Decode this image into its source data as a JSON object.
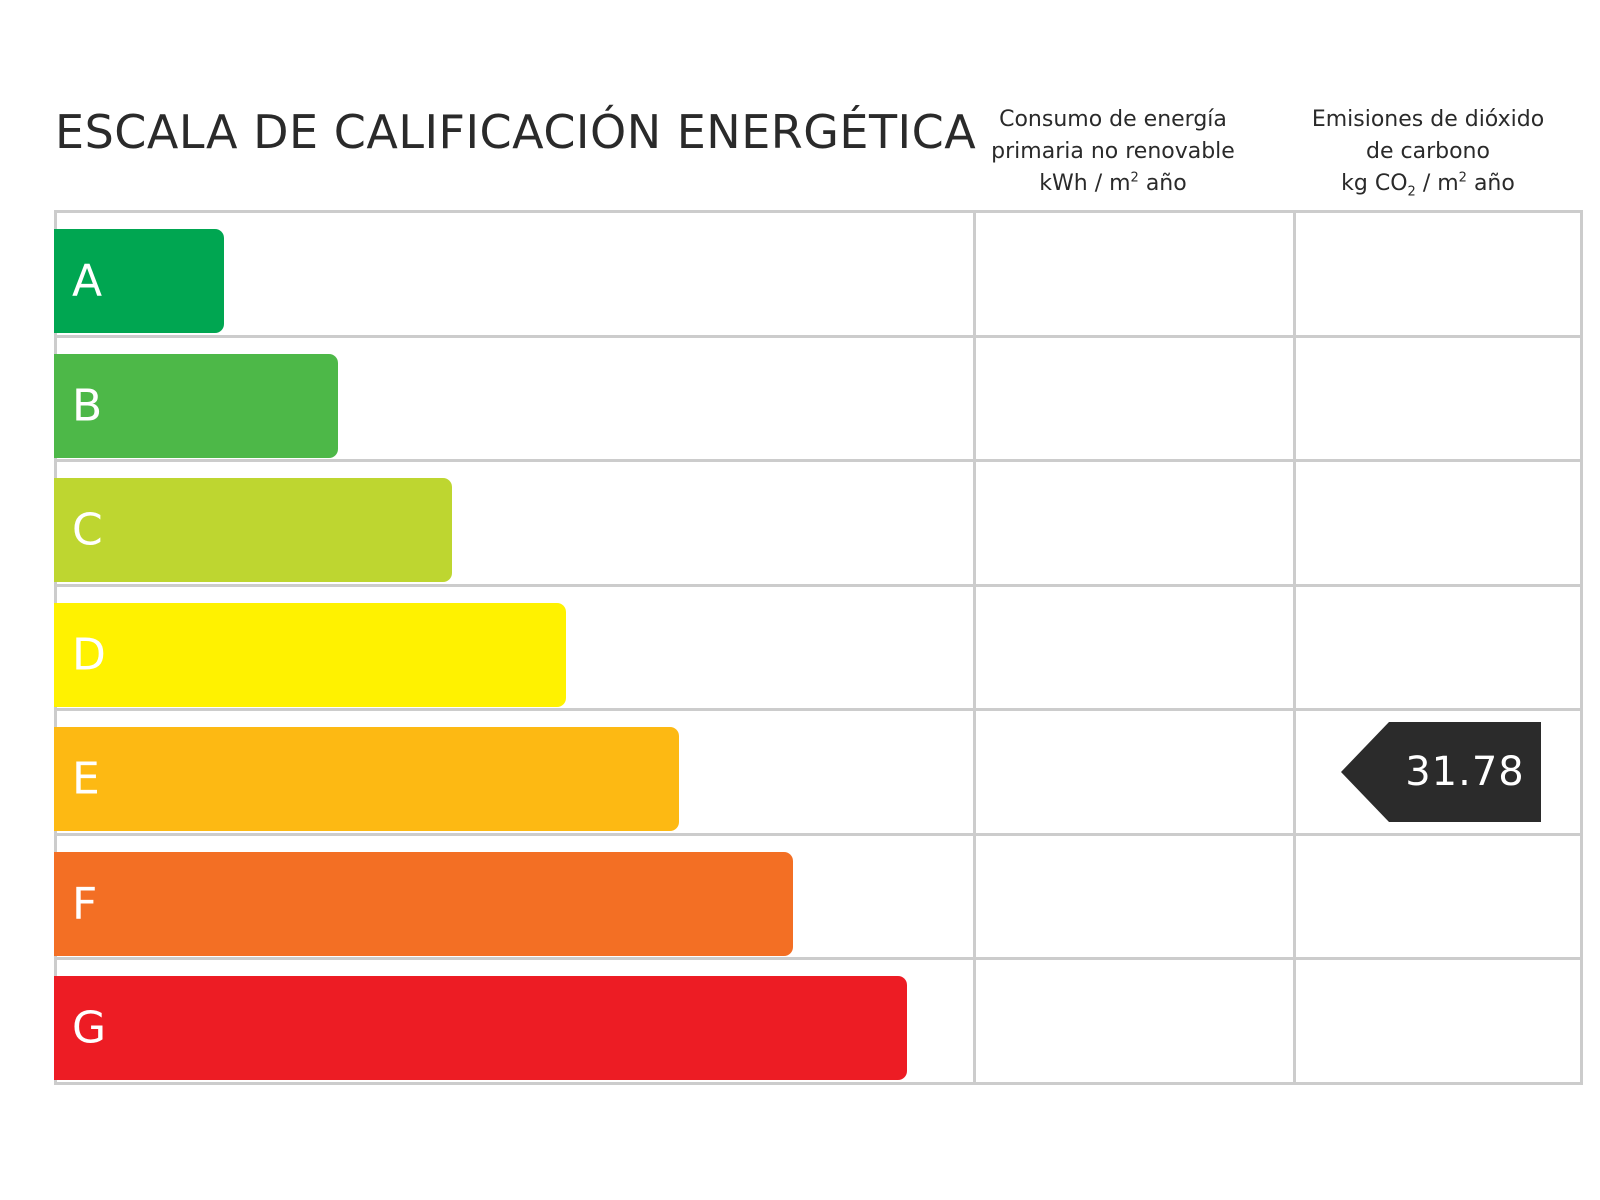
{
  "title": "ESCALA DE CALIFICACIÓN ENERGÉTICA",
  "columns": {
    "consumo": {
      "line1": "Consumo de energía",
      "line2": "primaria no renovable",
      "unit_a": "kWh / m",
      "unit_sup": "2",
      "unit_b": " año"
    },
    "emisiones": {
      "line1": "Emisiones de dióxido",
      "line2": "de carbono",
      "unit_a": "kg CO",
      "unit_sub": "2",
      "unit_b": " / m",
      "unit_sup": "2",
      "unit_c": " año"
    }
  },
  "chart_data": {
    "type": "bar",
    "categories": [
      "A",
      "B",
      "C",
      "D",
      "E",
      "F",
      "G"
    ],
    "relative_length": [
      1,
      2,
      3,
      4,
      5,
      6,
      7
    ],
    "colors": [
      "#00a651",
      "#4db848",
      "#bed630",
      "#fff200",
      "#fdb913",
      "#f36f24",
      "#ed1c24"
    ],
    "ratings": [
      {
        "column": "emisiones",
        "category": "E",
        "value": "31.78",
        "color": "#2b2b2b"
      }
    ]
  }
}
